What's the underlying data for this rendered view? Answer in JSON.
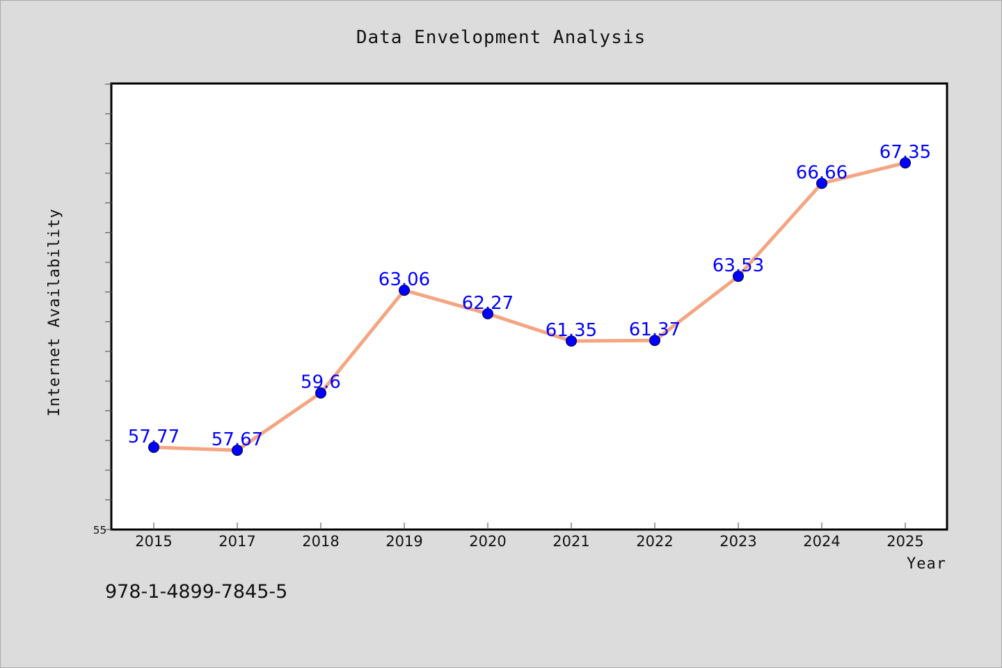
{
  "footer": {
    "note": "978-1-4899-7845-5"
  },
  "chart_data": {
    "type": "line",
    "title": "Data Envelopment Analysis",
    "xlabel": "Year",
    "ylabel": "Internet Availability",
    "categories": [
      "2015",
      "2017",
      "2018",
      "2019",
      "2020",
      "2021",
      "2022",
      "2023",
      "2024",
      "2025"
    ],
    "values": [
      57.77,
      57.67,
      59.6,
      63.06,
      62.27,
      61.35,
      61.37,
      63.53,
      66.66,
      67.35
    ],
    "data_labels": [
      "57.77",
      "57.67",
      "59.6",
      "63.06",
      "62.27",
      "61.35",
      "61.37",
      "63.53",
      "66.66",
      "67.35"
    ],
    "ylim": [
      55,
      70
    ],
    "yticks_labeled": [
      "55"
    ],
    "y_minor_step": 1,
    "grid": false,
    "legend": "none",
    "colors": {
      "line": "#f4a582",
      "marker": "#0000ff",
      "label": "#0000ff",
      "plot_bg": "#ffffff",
      "figure_bg": "#dcdcdc"
    }
  }
}
